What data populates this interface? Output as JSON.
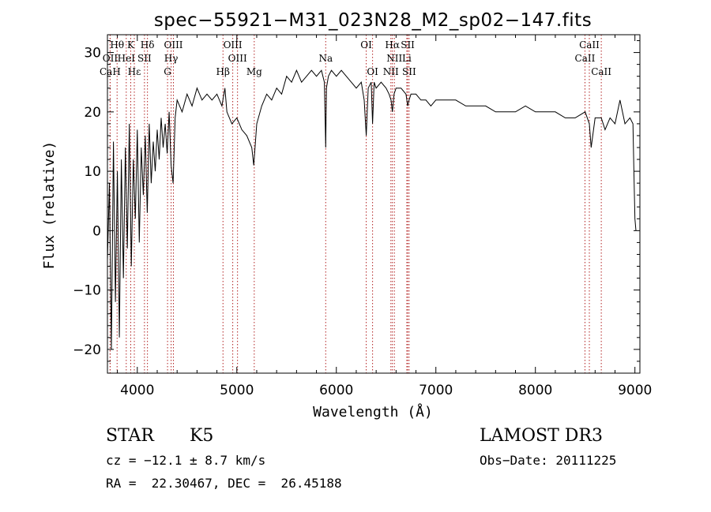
{
  "chart_data": {
    "type": "line",
    "title": "spec−55921−M31_023N28_M2_sp02−147.fits",
    "xlabel": "Wavelength (Å)",
    "ylabel": "Flux (relative)",
    "xlim": [
      3700,
      9050
    ],
    "ylim": [
      -24,
      33
    ],
    "x_ticks": [
      4000,
      5000,
      6000,
      7000,
      8000,
      9000
    ],
    "y_ticks": [
      -20,
      -10,
      0,
      10,
      20,
      30
    ],
    "x_tick_labels": [
      "4000",
      "5000",
      "6000",
      "7000",
      "8000",
      "9000"
    ],
    "y_tick_labels": [
      "−20",
      "−10",
      "0",
      "10",
      "20",
      "30"
    ],
    "series": [
      {
        "name": "flux",
        "x": [
          3700,
          3720,
          3740,
          3760,
          3780,
          3800,
          3820,
          3840,
          3860,
          3880,
          3900,
          3920,
          3940,
          3960,
          3980,
          4000,
          4020,
          4040,
          4060,
          4080,
          4100,
          4120,
          4140,
          4160,
          4180,
          4200,
          4220,
          4240,
          4260,
          4280,
          4300,
          4320,
          4340,
          4360,
          4380,
          4400,
          4450,
          4500,
          4550,
          4600,
          4650,
          4700,
          4750,
          4800,
          4850,
          4880,
          4900,
          4950,
          5000,
          5050,
          5100,
          5150,
          5170,
          5200,
          5250,
          5300,
          5350,
          5400,
          5450,
          5500,
          5550,
          5600,
          5650,
          5700,
          5750,
          5800,
          5850,
          5880,
          5893,
          5900,
          5920,
          5950,
          6000,
          6050,
          6100,
          6150,
          6200,
          6250,
          6280,
          6300,
          6320,
          6350,
          6364,
          6380,
          6400,
          6450,
          6500,
          6530,
          6550,
          6563,
          6580,
          6600,
          6650,
          6700,
          6717,
          6731,
          6750,
          6800,
          6850,
          6900,
          6950,
          7000,
          7100,
          7200,
          7300,
          7400,
          7500,
          7600,
          7700,
          7800,
          7900,
          8000,
          8100,
          8200,
          8300,
          8400,
          8500,
          8542,
          8560,
          8600,
          8662,
          8700,
          8750,
          8800,
          8850,
          8900,
          8950,
          8980,
          8990,
          9000,
          9010
        ],
        "values": [
          -5,
          8,
          -20,
          15,
          -12,
          10,
          -18,
          12,
          -8,
          14,
          -3,
          18,
          -6,
          12,
          2,
          17,
          -2,
          14,
          6,
          16,
          3,
          18,
          8,
          15,
          10,
          17,
          12,
          19,
          14,
          18,
          13,
          20,
          11,
          8,
          19,
          22,
          20,
          23,
          21,
          24,
          22,
          23,
          22,
          23,
          21,
          24,
          20,
          18,
          19,
          17,
          16,
          14,
          11,
          18,
          21,
          23,
          22,
          24,
          23,
          26,
          25,
          27,
          25,
          26,
          27,
          26,
          27,
          25,
          14,
          24,
          26,
          27,
          26,
          27,
          26,
          25,
          24,
          25,
          22,
          16,
          24,
          25,
          18,
          25,
          24,
          25,
          24,
          23,
          22,
          20,
          23,
          24,
          24,
          23,
          21,
          22,
          23,
          23,
          22,
          22,
          21,
          22,
          22,
          22,
          21,
          21,
          21,
          20,
          20,
          20,
          21,
          20,
          20,
          20,
          19,
          19,
          20,
          18,
          14,
          19,
          19,
          17,
          19,
          18,
          22,
          18,
          19,
          18,
          10,
          2,
          0
        ]
      }
    ],
    "spectral_lines": [
      {
        "label": "Hθ",
        "x": 3797,
        "row": 1
      },
      {
        "label": "K",
        "x": 3934,
        "row": 1
      },
      {
        "label": "Hδ",
        "x": 4102,
        "row": 1
      },
      {
        "label": "OIII",
        "x": 4363,
        "row": 1
      },
      {
        "label": "OIII",
        "x": 4959,
        "row": 1
      },
      {
        "label": "CaII",
        "x": 8542,
        "row": 1
      },
      {
        "label": "OI",
        "x": 6300,
        "row": 1
      },
      {
        "label": "Hα",
        "x": 6563,
        "row": 1
      },
      {
        "label": "SII",
        "x": 6717,
        "row": 1
      },
      {
        "label": "OII",
        "x": 3727,
        "row": 2
      },
      {
        "label": "HeI",
        "x": 3889,
        "row": 2
      },
      {
        "label": "SII",
        "x": 4072,
        "row": 2
      },
      {
        "label": "Hγ",
        "x": 4340,
        "row": 2
      },
      {
        "label": "OIII",
        "x": 5007,
        "row": 2
      },
      {
        "label": "Na",
        "x": 5893,
        "row": 2
      },
      {
        "label": "NII",
        "x": 6583,
        "row": 2
      },
      {
        "label": "Li",
        "x": 6708,
        "row": 2
      },
      {
        "label": "CaII",
        "x": 8498,
        "row": 2
      },
      {
        "label": "CaH",
        "x": 3727,
        "row": 3
      },
      {
        "label": "Hε",
        "x": 3970,
        "row": 3
      },
      {
        "label": "G",
        "x": 4304,
        "row": 3
      },
      {
        "label": "Hβ",
        "x": 4861,
        "row": 3
      },
      {
        "label": "Mg",
        "x": 5175,
        "row": 3
      },
      {
        "label": "OI",
        "x": 6364,
        "row": 3
      },
      {
        "label": "NII",
        "x": 6548,
        "row": 3
      },
      {
        "label": "SII",
        "x": 6731,
        "row": 3
      },
      {
        "label": "CaII",
        "x": 8662,
        "row": 3
      }
    ]
  },
  "info": {
    "class_label": "STAR",
    "subclass": "K5",
    "survey": "LAMOST DR3",
    "cz": "cz = −12.1 ± 8.7 km/s",
    "obs_date": "Obs−Date: 20111225",
    "coords": "RA =  22.30467, DEC =  26.45188"
  }
}
